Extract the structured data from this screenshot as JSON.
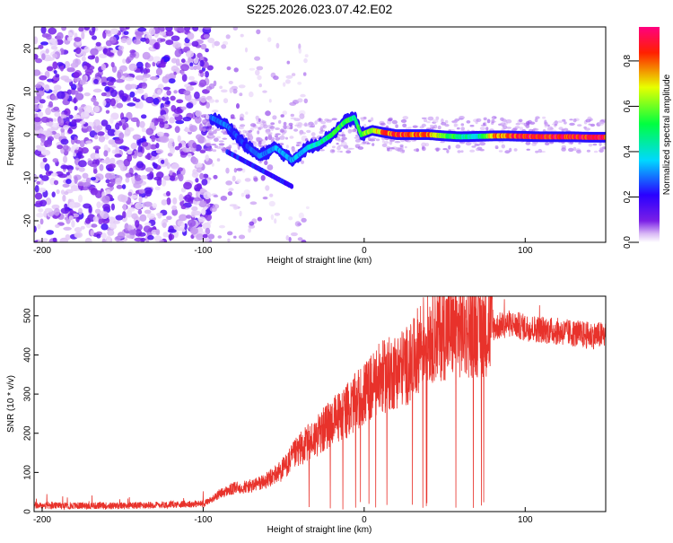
{
  "figure_title": "S225.2026.023.07.42.E02",
  "chart_data": [
    {
      "type": "heatmap",
      "xlabel": "Height of straight line (km)",
      "ylabel": "Frequency (Hz)",
      "xlim": [
        -205,
        150
      ],
      "ylim": [
        -25,
        25
      ],
      "xticks": [
        -200,
        -100,
        0,
        100
      ],
      "yticks": [
        -20,
        -10,
        0,
        10,
        20
      ],
      "colorbar": {
        "label": "Normalized spectral amplitude",
        "range": [
          0.0,
          0.95
        ],
        "ticks": [
          0.0,
          0.2,
          0.4,
          0.6,
          0.8
        ],
        "colors": [
          "#ffffff",
          "#d9b8f5",
          "#7a1fe6",
          "#2a00ff",
          "#00d8ff",
          "#00ff40",
          "#e8ff00",
          "#ff2000",
          "#ff0080"
        ]
      },
      "ridge_x": [
        -95,
        -85,
        -75,
        -65,
        -55,
        -45,
        -35,
        -28,
        -20,
        -12,
        -6,
        -2,
        5,
        12,
        20,
        30,
        40,
        50,
        60,
        70,
        80,
        90,
        100,
        110,
        120,
        130,
        140,
        150
      ],
      "ridge_freq": [
        4,
        2,
        -2,
        -5,
        -3,
        -6,
        -3,
        -2,
        0,
        3,
        4,
        0,
        1,
        0.5,
        0,
        0,
        0,
        -0.3,
        -0.5,
        -0.4,
        -0.3,
        -0.3,
        -0.4,
        -0.5,
        -0.5,
        -0.5,
        -0.6,
        -0.6
      ],
      "ridge_amp": [
        0.3,
        0.3,
        0.25,
        0.3,
        0.35,
        0.35,
        0.4,
        0.45,
        0.55,
        0.6,
        0.5,
        0.6,
        0.7,
        0.85,
        0.9,
        0.88,
        0.85,
        0.6,
        0.5,
        0.4,
        0.8,
        0.9,
        0.92,
        0.95,
        0.95,
        0.95,
        0.95,
        0.95
      ]
    },
    {
      "type": "line",
      "xlabel": "Height of straight line (km)",
      "ylabel": "SNR (10 * v/v)",
      "xlim": [
        -205,
        150
      ],
      "ylim": [
        0,
        550
      ],
      "xticks": [
        -200,
        -100,
        0,
        100
      ],
      "yticks": [
        0,
        100,
        200,
        300,
        400,
        500
      ],
      "color": "#e8322b",
      "x": [
        -205,
        -150,
        -100,
        -95,
        -90,
        -80,
        -70,
        -60,
        -50,
        -40,
        -30,
        -20,
        -10,
        0,
        10,
        20,
        30,
        35,
        40,
        50,
        60,
        70,
        80,
        90,
        100,
        110,
        120,
        130,
        140,
        150
      ],
      "y": [
        15,
        15,
        20,
        30,
        45,
        60,
        65,
        80,
        110,
        160,
        190,
        230,
        260,
        300,
        340,
        360,
        380,
        430,
        450,
        460,
        465,
        470,
        470,
        480,
        470,
        465,
        460,
        455,
        450,
        450
      ]
    }
  ]
}
